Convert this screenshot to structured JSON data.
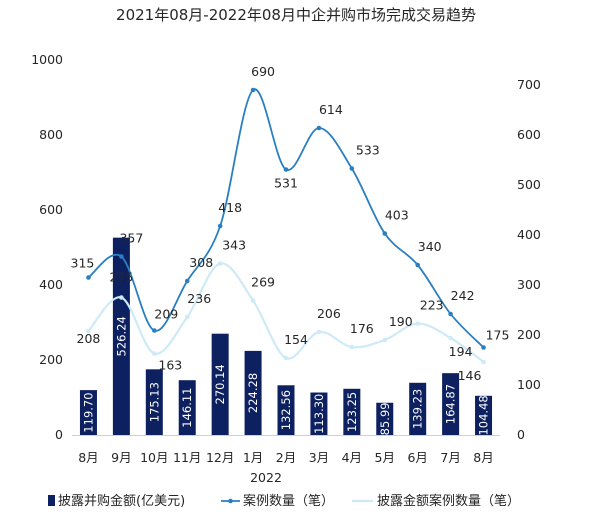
{
  "chart_data": {
    "type": "bar",
    "title": "2021年08月-2022年08月中企并购市场完成交易趋势",
    "categories": [
      "8月",
      "9月",
      "10月",
      "11月",
      "12月",
      "1月",
      "2月",
      "3月",
      "4月",
      "5月",
      "6月",
      "7月",
      "8月"
    ],
    "year_label": "2022",
    "y_left": {
      "ticks": [
        "0",
        "200",
        "400",
        "600",
        "800",
        "1000"
      ],
      "range": [
        0,
        1000
      ]
    },
    "y_right": {
      "ticks": [
        "0",
        "100",
        "200",
        "300",
        "400",
        "500",
        "600",
        "700"
      ],
      "range": [
        0,
        750
      ]
    },
    "grid": false,
    "legend_position": "bottom",
    "series": [
      {
        "name": "披露并购金额(亿美元)",
        "type": "bar",
        "axis": "left",
        "color": "#0d2060",
        "values": [
          119.7,
          526.24,
          175.13,
          146.11,
          270.14,
          224.28,
          132.56,
          113.3,
          123.25,
          85.99,
          139.23,
          164.87,
          104.48
        ],
        "labels": [
          "119.70",
          "526.24",
          "175.13",
          "146.11",
          "270.14",
          "224.28",
          "132.56",
          "113.30",
          "123.25",
          "85.99",
          "139.23",
          "164.87",
          "104.48"
        ]
      },
      {
        "name": "案例数量（笔）",
        "type": "line",
        "axis": "right",
        "color": "#2a7fc2",
        "values": [
          315,
          357,
          209,
          308,
          418,
          690,
          531,
          614,
          533,
          403,
          340,
          242,
          175
        ],
        "labels": [
          "315",
          "357",
          "209",
          "308",
          "418",
          "690",
          "531",
          "614",
          "533",
          "403",
          "340",
          "242",
          "175"
        ]
      },
      {
        "name": "披露金额案例数量（笔）",
        "type": "line",
        "axis": "right",
        "color": "#cfeaf7",
        "values": [
          208,
          275,
          163,
          236,
          343,
          269,
          154,
          206,
          176,
          190,
          223,
          194,
          146
        ],
        "labels": [
          "208",
          "275",
          "163",
          "236",
          "343",
          "269",
          "154",
          "206",
          "176",
          "190",
          "223",
          "194",
          "146"
        ]
      }
    ]
  }
}
